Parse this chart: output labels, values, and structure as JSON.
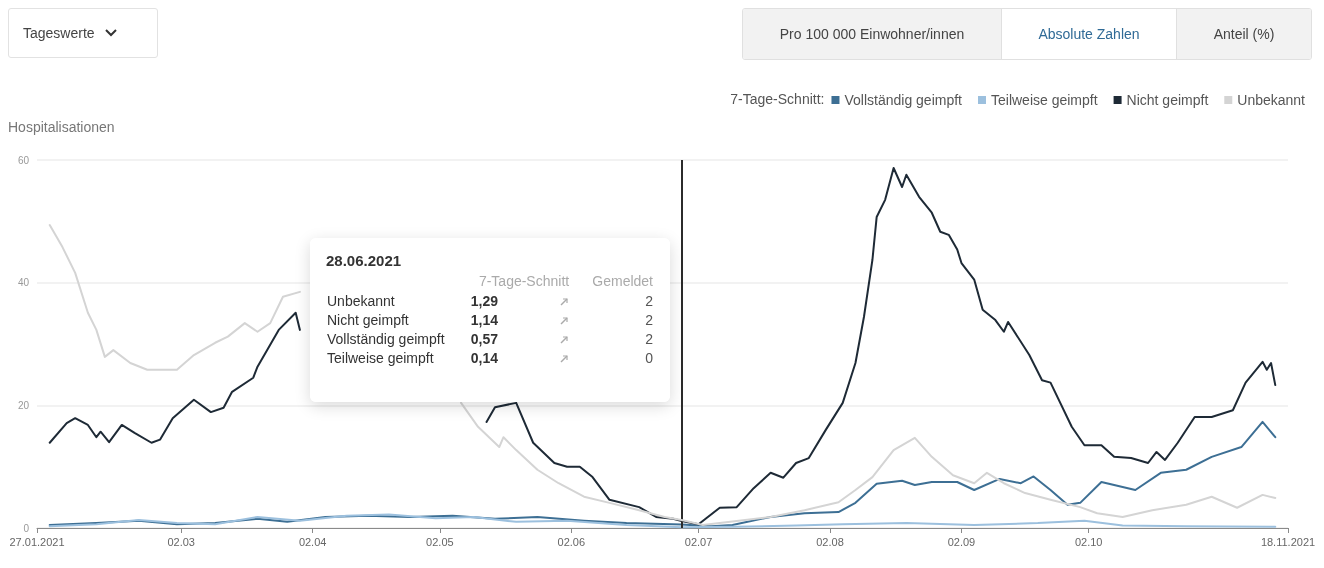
{
  "chart_data": {
    "type": "line",
    "ylabel": "Hospitalisationen",
    "legend_title": "7-Tage-Schnitt:",
    "legend": "top right",
    "grid": "y",
    "marker": "none",
    "xlim": [
      "2021-01-27",
      "2021-11-18"
    ],
    "xticks": [
      {
        "value": "2021-01-27",
        "label": "27.01.2021"
      },
      {
        "value": "2021-03-02",
        "label": "02.03"
      },
      {
        "value": "2021-04-02",
        "label": "02.04"
      },
      {
        "value": "2021-05-02",
        "label": "02.05"
      },
      {
        "value": "2021-06-02",
        "label": "02.06"
      },
      {
        "value": "2021-07-02",
        "label": "02.07"
      },
      {
        "value": "2021-08-02",
        "label": "02.08"
      },
      {
        "value": "2021-09-02",
        "label": "02.09"
      },
      {
        "value": "2021-10-02",
        "label": "02.10"
      },
      {
        "value": "2021-11-18",
        "label": "18.11.2021"
      }
    ],
    "ylim": [
      0,
      60
    ],
    "yticks": [
      0,
      20,
      40,
      60
    ],
    "ref_lines": [
      {
        "axis": "x",
        "value": "2021-06-28",
        "color": "#2b2b2b"
      }
    ],
    "annotations": [
      "Tageswerte",
      "Pro 100 000 Einwohner/innen",
      "Absolute Zahlen",
      "Anteil (%)",
      "28.06.2021",
      "7-Tage-Schnitt",
      "Gemeldet",
      "Unbekannt",
      "1,29",
      "2",
      "Nicht geimpft",
      "1,14",
      "2",
      "Vollständig geimpft",
      "0,57",
      "2",
      "Teilweise geimpft",
      "0,14",
      "0"
    ],
    "series": [
      {
        "name": "Vollständig geimpft",
        "color": "#3d6f94",
        "x": [
          "2021-01-30",
          "2021-02-10",
          "2021-02-20",
          "2021-03-01",
          "2021-03-10",
          "2021-03-20",
          "2021-03-27",
          "2021-04-05",
          "2021-04-15",
          "2021-04-25",
          "2021-05-05",
          "2021-05-15",
          "2021-05-25",
          "2021-06-05",
          "2021-06-15",
          "2021-06-28",
          "2021-07-05",
          "2021-07-10",
          "2021-07-19",
          "2021-07-27",
          "2021-08-04",
          "2021-08-08",
          "2021-08-13",
          "2021-08-19",
          "2021-08-22",
          "2021-08-26",
          "2021-09-01",
          "2021-09-05",
          "2021-09-11",
          "2021-09-16",
          "2021-09-19",
          "2021-09-23",
          "2021-09-27",
          "2021-09-30",
          "2021-10-05",
          "2021-10-13",
          "2021-10-19",
          "2021-10-25",
          "2021-10-31",
          "2021-11-07",
          "2021-11-12",
          "2021-11-15"
        ],
        "values": [
          0.5,
          0.8,
          1.2,
          0.6,
          0.8,
          1.5,
          1.0,
          1.8,
          2.0,
          1.8,
          2.0,
          1.5,
          1.8,
          1.2,
          0.8,
          0.57,
          0.3,
          0.5,
          1.8,
          2.4,
          2.6,
          4.1,
          7.2,
          7.7,
          7.0,
          7.5,
          7.5,
          6.2,
          8.0,
          7.3,
          8.4,
          6.2,
          3.8,
          4.1,
          7.5,
          6.2,
          9.0,
          9.5,
          11.6,
          13.2,
          17.3,
          14.8
        ]
      },
      {
        "name": "Teilweise geimpft",
        "color": "#9cc0de",
        "x": [
          "2021-01-30",
          "2021-02-10",
          "2021-02-20",
          "2021-03-01",
          "2021-03-10",
          "2021-03-20",
          "2021-03-30",
          "2021-04-10",
          "2021-04-20",
          "2021-05-01",
          "2021-05-10",
          "2021-05-20",
          "2021-06-01",
          "2021-06-15",
          "2021-06-28",
          "2021-07-10",
          "2021-07-25",
          "2021-08-05",
          "2021-08-20",
          "2021-09-05",
          "2021-09-20",
          "2021-10-01",
          "2021-10-10",
          "2021-10-25",
          "2021-11-15"
        ],
        "values": [
          0.3,
          0.6,
          1.3,
          0.8,
          0.6,
          1.8,
          1.2,
          2.0,
          2.2,
          1.6,
          1.8,
          1.0,
          1.2,
          0.5,
          0.14,
          0.2,
          0.4,
          0.6,
          0.8,
          0.5,
          0.8,
          1.2,
          0.4,
          0.3,
          0.2
        ]
      },
      {
        "name": "Nicht geimpft",
        "color": "#1e2a36",
        "x": [
          "2021-01-30",
          "2021-02-03",
          "2021-02-05",
          "2021-02-08",
          "2021-02-10",
          "2021-02-11",
          "2021-02-13",
          "2021-02-16",
          "2021-02-19",
          "2021-02-23",
          "2021-02-25",
          "2021-02-28",
          "2021-03-05",
          "2021-03-09",
          "2021-03-12",
          "2021-03-14",
          "2021-03-19",
          "2021-03-20",
          "2021-03-25",
          "2021-03-29",
          "2021-03-30",
          "2021-04-20",
          "2021-05-13",
          "2021-05-15",
          "2021-05-20",
          "2021-05-24",
          "2021-05-29",
          "2021-06-01",
          "2021-06-04",
          "2021-06-07",
          "2021-06-11",
          "2021-06-18",
          "2021-06-22",
          "2021-06-26",
          "2021-06-28",
          "2021-07-02",
          "2021-07-07",
          "2021-07-11",
          "2021-07-15",
          "2021-07-19",
          "2021-07-22",
          "2021-07-25",
          "2021-07-28",
          "2021-08-01",
          "2021-08-05",
          "2021-08-08",
          "2021-08-10",
          "2021-08-12",
          "2021-08-13",
          "2021-08-15",
          "2021-08-17",
          "2021-08-19",
          "2021-08-20",
          "2021-08-23",
          "2021-08-26",
          "2021-08-28",
          "2021-08-30",
          "2021-09-01",
          "2021-09-02",
          "2021-09-05",
          "2021-09-07",
          "2021-09-10",
          "2021-09-12",
          "2021-09-13",
          "2021-09-18",
          "2021-09-21",
          "2021-09-23",
          "2021-09-28",
          "2021-10-01",
          "2021-10-05",
          "2021-10-08",
          "2021-10-12",
          "2021-10-16",
          "2021-10-18",
          "2021-10-20",
          "2021-10-23",
          "2021-10-27",
          "2021-10-31",
          "2021-11-05",
          "2021-11-08",
          "2021-11-12",
          "2021-11-13",
          "2021-11-14",
          "2021-11-15"
        ],
        "values": [
          13.9,
          17.1,
          17.9,
          16.8,
          14.8,
          15.7,
          14.0,
          16.8,
          15.5,
          13.9,
          14.4,
          17.9,
          20.9,
          18.9,
          19.6,
          22.2,
          24.5,
          26.3,
          32.3,
          35.1,
          32.3,
          null,
          17.3,
          19.7,
          20.4,
          13.9,
          10.6,
          10.0,
          10.0,
          8.3,
          4.6,
          3.4,
          1.8,
          1.5,
          1.14,
          0.6,
          3.3,
          3.4,
          6.5,
          9.0,
          8.2,
          10.6,
          11.4,
          16.0,
          20.4,
          26.9,
          34.4,
          43.7,
          50.7,
          53.5,
          58.7,
          55.6,
          57.6,
          54.0,
          51.4,
          48.3,
          47.8,
          45.4,
          43.2,
          40.5,
          35.6,
          33.9,
          32.0,
          33.6,
          28.2,
          24.1,
          23.7,
          16.5,
          13.5,
          13.5,
          11.6,
          11.4,
          10.6,
          12.4,
          11.1,
          13.9,
          18.1,
          18.1,
          19.2,
          23.7,
          27.1,
          25.8,
          26.9,
          23.3
        ]
      },
      {
        "name": "Unbekannt",
        "color": "#d4d4d4",
        "x": [
          "2021-01-30",
          "2021-02-02",
          "2021-02-05",
          "2021-02-08",
          "2021-02-10",
          "2021-02-12",
          "2021-02-14",
          "2021-02-18",
          "2021-02-22",
          "2021-03-01",
          "2021-03-05",
          "2021-03-10",
          "2021-03-13",
          "2021-03-17",
          "2021-03-20",
          "2021-03-23",
          "2021-03-26",
          "2021-03-30",
          "2021-04-20",
          "2021-05-07",
          "2021-05-11",
          "2021-05-16",
          "2021-05-17",
          "2021-05-20",
          "2021-05-25",
          "2021-05-30",
          "2021-06-05",
          "2021-06-11",
          "2021-06-18",
          "2021-06-24",
          "2021-06-28",
          "2021-07-03",
          "2021-07-19",
          "2021-07-27",
          "2021-08-04",
          "2021-08-08",
          "2021-08-12",
          "2021-08-17",
          "2021-08-22",
          "2021-08-26",
          "2021-08-31",
          "2021-09-05",
          "2021-09-08",
          "2021-09-12",
          "2021-09-17",
          "2021-09-23",
          "2021-09-30",
          "2021-10-04",
          "2021-10-10",
          "2021-10-17",
          "2021-10-25",
          "2021-10-31",
          "2021-11-06",
          "2021-11-12",
          "2021-11-15"
        ],
        "values": [
          49.4,
          45.8,
          41.6,
          35.1,
          32.3,
          27.9,
          29.0,
          26.9,
          25.8,
          25.8,
          28.2,
          30.2,
          31.2,
          33.4,
          32.0,
          33.4,
          37.7,
          38.5,
          null,
          20.4,
          16.5,
          13.2,
          14.8,
          12.7,
          9.5,
          7.3,
          5.1,
          4.1,
          2.9,
          1.8,
          1.29,
          0.5,
          1.8,
          2.9,
          4.2,
          6.2,
          8.3,
          12.7,
          14.7,
          11.6,
          8.6,
          7.3,
          9.0,
          7.3,
          5.7,
          4.6,
          3.4,
          2.4,
          1.8,
          2.9,
          3.8,
          5.1,
          3.3,
          5.4,
          4.9
        ]
      }
    ]
  }
}
